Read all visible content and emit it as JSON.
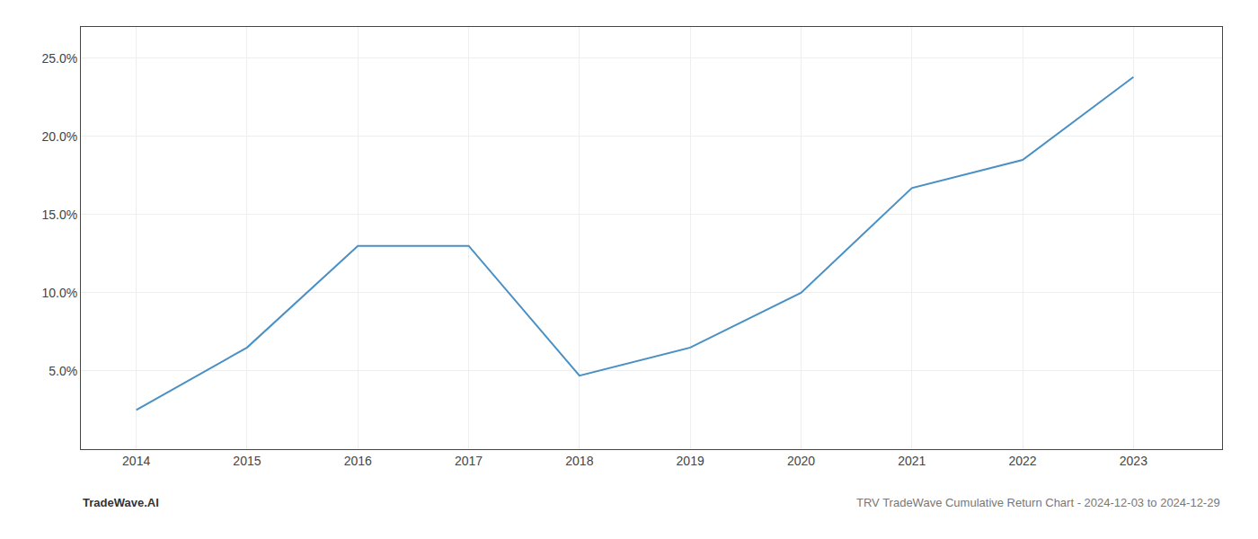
{
  "chart_data": {
    "type": "line",
    "x": [
      2014,
      2015,
      2016,
      2017,
      2018,
      2019,
      2020,
      2021,
      2022,
      2023
    ],
    "values": [
      2.5,
      6.5,
      13.0,
      13.0,
      4.7,
      6.5,
      10.0,
      16.7,
      18.5,
      23.8
    ],
    "color": "#4a90c4",
    "xlim": [
      2013.5,
      2023.8
    ],
    "ylim": [
      0,
      27
    ],
    "xticks": [
      2014,
      2015,
      2016,
      2017,
      2018,
      2019,
      2020,
      2021,
      2022,
      2023
    ],
    "yticks": [
      {
        "value": 5.0,
        "label": "5.0%"
      },
      {
        "value": 10.0,
        "label": "10.0%"
      },
      {
        "value": 15.0,
        "label": "15.0%"
      },
      {
        "value": 20.0,
        "label": "20.0%"
      },
      {
        "value": 25.0,
        "label": "25.0%"
      }
    ],
    "grid": true,
    "annotations": [
      "TradeWave.AI",
      "TRV TradeWave Cumulative Return Chart - 2024-12-03 to 2024-12-29"
    ]
  }
}
